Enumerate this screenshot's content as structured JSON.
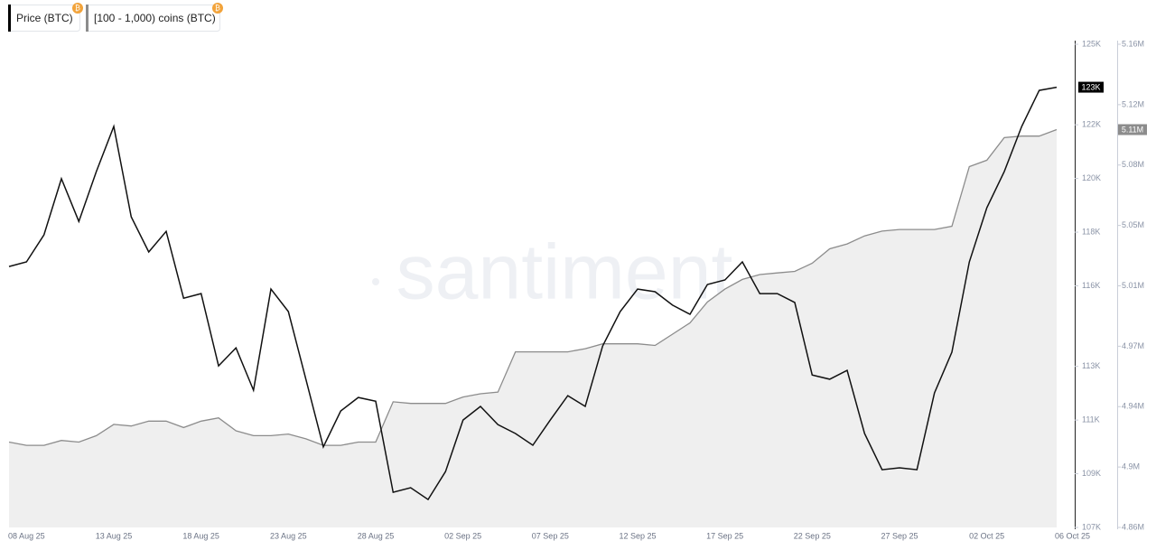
{
  "chart_data": {
    "type": "line",
    "watermark": "santiment",
    "categories": [
      null,
      "08 Aug 25",
      null,
      null,
      null,
      null,
      "13 Aug 25",
      null,
      null,
      null,
      null,
      "18 Aug 25",
      null,
      null,
      null,
      null,
      "23 Aug 25",
      null,
      null,
      null,
      null,
      "28 Aug 25",
      null,
      null,
      null,
      null,
      "02 Sep 25",
      null,
      null,
      null,
      null,
      "07 Sep 25",
      null,
      null,
      null,
      null,
      "12 Sep 25",
      null,
      null,
      null,
      null,
      "17 Sep 25",
      null,
      null,
      null,
      null,
      "22 Sep 25",
      null,
      null,
      null,
      null,
      "27 Sep 25",
      null,
      null,
      null,
      null,
      "02 Oct 25",
      null,
      null,
      null,
      "06 Oct 25"
    ],
    "series": [
      {
        "name": "Price (BTC)",
        "color": "#111111",
        "axis": "y",
        "last_label": "123K",
        "values": [
          116.72,
          116.89,
          117.9,
          119.99,
          118.4,
          120.26,
          121.94,
          118.57,
          117.26,
          118.03,
          115.54,
          115.71,
          113.02,
          113.69,
          112.11,
          115.88,
          115.04,
          112.52,
          110.0,
          111.34,
          111.84,
          111.7,
          108.31,
          108.48,
          108.04,
          109.08,
          111.0,
          111.51,
          110.83,
          110.5,
          110.06,
          111.0,
          111.91,
          111.51,
          113.76,
          115.04,
          115.88,
          115.78,
          115.28,
          114.94,
          116.05,
          116.22,
          116.89,
          115.71,
          115.71,
          115.38,
          112.68,
          112.52,
          112.85,
          110.5,
          109.15,
          109.22,
          109.15,
          112.01,
          113.53,
          116.89,
          118.91,
          120.26,
          121.94,
          123.28,
          123.4
        ]
      },
      {
        "name": "[100 - 1,000) coins (BTC)",
        "color": "#8c8c8c",
        "fill": "#efefef",
        "axis": "y2",
        "last_label": "5.11M",
        "values": [
          4.913,
          4.911,
          4.911,
          4.914,
          4.913,
          4.917,
          4.924,
          4.923,
          4.926,
          4.926,
          4.922,
          4.926,
          4.928,
          4.92,
          4.917,
          4.917,
          4.918,
          4.915,
          4.911,
          4.911,
          4.913,
          4.913,
          4.938,
          4.937,
          4.937,
          4.937,
          4.941,
          4.943,
          4.944,
          4.969,
          4.969,
          4.969,
          4.969,
          4.971,
          4.974,
          4.974,
          4.974,
          4.973,
          4.98,
          4.987,
          5.0,
          5.008,
          5.014,
          5.017,
          5.018,
          5.019,
          5.024,
          5.033,
          5.036,
          5.041,
          5.044,
          5.045,
          5.045,
          5.045,
          5.047,
          5.084,
          5.088,
          5.102,
          5.103,
          5.103,
          5.107
        ]
      }
    ],
    "ylim": [
      107,
      125
    ],
    "yticks": [
      {
        "value": 107,
        "label": "107K"
      },
      {
        "value": 109,
        "label": "109K"
      },
      {
        "value": 111,
        "label": "111K"
      },
      {
        "value": 113,
        "label": "113K"
      },
      {
        "value": 116,
        "label": "116K"
      },
      {
        "value": 118,
        "label": "118K"
      },
      {
        "value": 120,
        "label": "120K"
      },
      {
        "value": 122,
        "label": "122K"
      },
      {
        "value": 125,
        "label": "125K"
      }
    ],
    "y2lim": [
      4.86,
      5.16
    ],
    "y2ticks": [
      {
        "value": 4.86,
        "label": "4.86M"
      },
      {
        "value": 4.8975,
        "label": "4.9M"
      },
      {
        "value": 4.935,
        "label": "4.94M"
      },
      {
        "value": 4.9725,
        "label": "4.97M"
      },
      {
        "value": 5.01,
        "label": "5.01M"
      },
      {
        "value": 5.0475,
        "label": "5.05M"
      },
      {
        "value": 5.085,
        "label": "5.08M"
      },
      {
        "value": 5.1225,
        "label": "5.12M"
      },
      {
        "value": 5.16,
        "label": "5.16M"
      }
    ],
    "grid": false
  }
}
